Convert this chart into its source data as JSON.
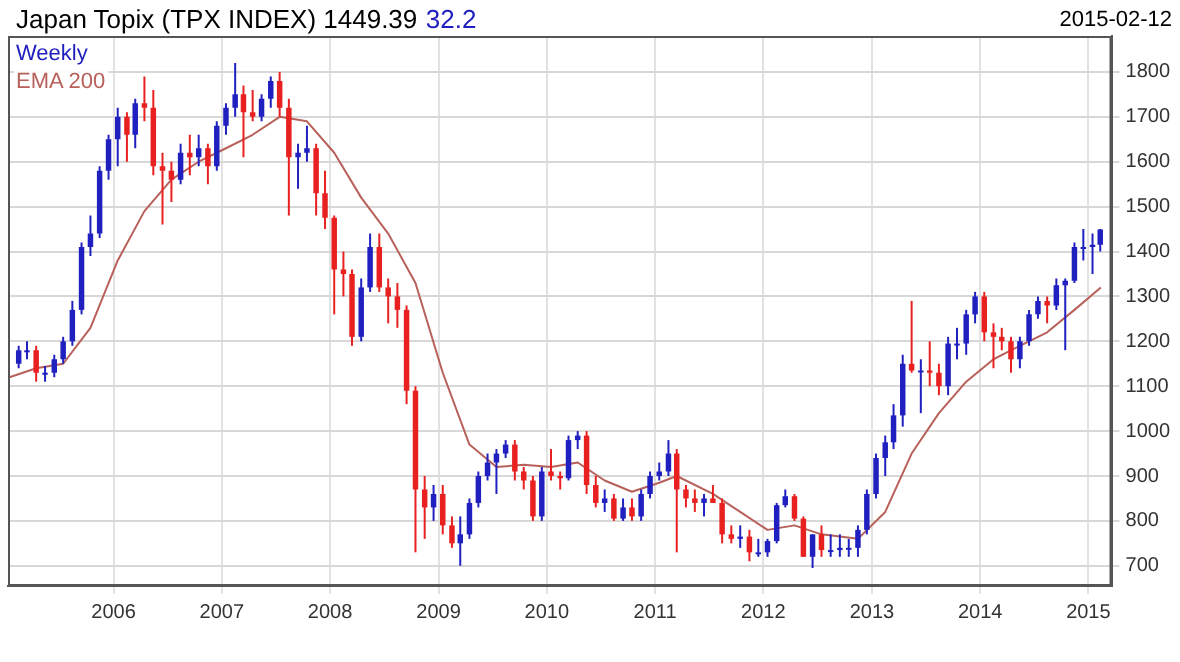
{
  "chart_data": {
    "type": "candlestick",
    "title": "Japan Topix (TPX INDEX) 1449.39",
    "subtitle": "32.2",
    "annotations": [
      "2015-02-12"
    ],
    "xlim": [
      "2005-01-10",
      "2015-03-20"
    ],
    "xticks": [
      {
        "value": "2006",
        "label": "2006"
      },
      {
        "value": "2007",
        "label": "2007"
      },
      {
        "value": "2008",
        "label": "2008"
      },
      {
        "value": "2009",
        "label": "2009"
      },
      {
        "value": "2010",
        "label": "2010"
      },
      {
        "value": "2011",
        "label": "2011"
      },
      {
        "value": "2012",
        "label": "2012"
      },
      {
        "value": "2013",
        "label": "2013"
      },
      {
        "value": "2014",
        "label": "2014"
      },
      {
        "value": "2015",
        "label": "2015"
      }
    ],
    "ylim": [
      655,
      1880
    ],
    "yticks": [
      700,
      800,
      900,
      1000,
      1100,
      1200,
      1300,
      1400,
      1500,
      1600,
      1700,
      1800
    ],
    "grid": true,
    "legend": "top left",
    "marker": "none",
    "series": [
      {
        "name": "Weekly",
        "type": "candlestick",
        "color": "#2020c0",
        "x": [
          "2005-02-15",
          "2005-03-15",
          "2005-04-15",
          "2005-05-15",
          "2005-06-15",
          "2005-07-15",
          "2005-08-15",
          "2005-09-15",
          "2005-10-15",
          "2005-11-15",
          "2005-12-15",
          "2006-01-15",
          "2006-02-15",
          "2006-03-15",
          "2006-04-15",
          "2006-05-15",
          "2006-06-15",
          "2006-07-15",
          "2006-08-15",
          "2006-09-15",
          "2006-10-15",
          "2006-11-15",
          "2006-12-15",
          "2007-01-15",
          "2007-02-15",
          "2007-03-15",
          "2007-04-15",
          "2007-05-15",
          "2007-06-15",
          "2007-07-15",
          "2007-08-15",
          "2007-09-15",
          "2007-10-15",
          "2007-11-15",
          "2007-12-15",
          "2008-01-15",
          "2008-02-15",
          "2008-03-15",
          "2008-04-15",
          "2008-05-15",
          "2008-06-15",
          "2008-07-15",
          "2008-08-15",
          "2008-09-15",
          "2008-10-15",
          "2008-11-15",
          "2008-12-15",
          "2009-01-15",
          "2009-02-15",
          "2009-03-15",
          "2009-04-15",
          "2009-05-15",
          "2009-06-15",
          "2009-07-15",
          "2009-08-15",
          "2009-09-15",
          "2009-10-15",
          "2009-11-15",
          "2009-12-15",
          "2010-01-15",
          "2010-02-15",
          "2010-03-15",
          "2010-04-15",
          "2010-05-15",
          "2010-06-15",
          "2010-07-15",
          "2010-08-15",
          "2010-09-15",
          "2010-10-15",
          "2010-11-15",
          "2010-12-15",
          "2011-01-15",
          "2011-02-15",
          "2011-03-15",
          "2011-04-15",
          "2011-05-15",
          "2011-06-15",
          "2011-07-15",
          "2011-08-15",
          "2011-09-15",
          "2011-10-15",
          "2011-11-15",
          "2011-12-15",
          "2012-01-15",
          "2012-02-15",
          "2012-03-15",
          "2012-04-15",
          "2012-05-15",
          "2012-06-15",
          "2012-07-15",
          "2012-08-15",
          "2012-09-15",
          "2012-10-15",
          "2012-11-15",
          "2012-12-15",
          "2013-01-15",
          "2013-02-15",
          "2013-03-15",
          "2013-04-15",
          "2013-05-15",
          "2013-06-15",
          "2013-07-15",
          "2013-08-15",
          "2013-09-15",
          "2013-10-15",
          "2013-11-15",
          "2013-12-15",
          "2014-01-15",
          "2014-02-15",
          "2014-03-15",
          "2014-04-15",
          "2014-05-15",
          "2014-06-15",
          "2014-07-15",
          "2014-08-15",
          "2014-09-15",
          "2014-10-15",
          "2014-11-15",
          "2014-12-15",
          "2015-01-15",
          "2015-02-10"
        ],
        "ohlc": [
          [
            1150,
            1190,
            1140,
            1180
          ],
          [
            1180,
            1200,
            1160,
            1180
          ],
          [
            1180,
            1190,
            1110,
            1130
          ],
          [
            1130,
            1145,
            1110,
            1130
          ],
          [
            1130,
            1170,
            1120,
            1160
          ],
          [
            1160,
            1210,
            1150,
            1200
          ],
          [
            1200,
            1290,
            1190,
            1270
          ],
          [
            1270,
            1420,
            1260,
            1410
          ],
          [
            1410,
            1480,
            1390,
            1440
          ],
          [
            1440,
            1590,
            1430,
            1580
          ],
          [
            1580,
            1660,
            1560,
            1650
          ],
          [
            1650,
            1720,
            1590,
            1700
          ],
          [
            1700,
            1710,
            1600,
            1660
          ],
          [
            1660,
            1740,
            1630,
            1730
          ],
          [
            1730,
            1790,
            1690,
            1720
          ],
          [
            1720,
            1760,
            1570,
            1590
          ],
          [
            1590,
            1620,
            1460,
            1580
          ],
          [
            1580,
            1600,
            1510,
            1560
          ],
          [
            1560,
            1640,
            1550,
            1620
          ],
          [
            1620,
            1660,
            1570,
            1610
          ],
          [
            1610,
            1660,
            1590,
            1630
          ],
          [
            1630,
            1640,
            1550,
            1590
          ],
          [
            1590,
            1690,
            1580,
            1680
          ],
          [
            1680,
            1730,
            1660,
            1720
          ],
          [
            1720,
            1820,
            1700,
            1750
          ],
          [
            1750,
            1770,
            1610,
            1710
          ],
          [
            1710,
            1760,
            1690,
            1700
          ],
          [
            1700,
            1750,
            1690,
            1740
          ],
          [
            1740,
            1790,
            1720,
            1780
          ],
          [
            1780,
            1800,
            1700,
            1720
          ],
          [
            1720,
            1740,
            1480,
            1610
          ],
          [
            1610,
            1640,
            1540,
            1620
          ],
          [
            1620,
            1680,
            1600,
            1630
          ],
          [
            1630,
            1640,
            1480,
            1530
          ],
          [
            1530,
            1580,
            1450,
            1475
          ],
          [
            1475,
            1480,
            1260,
            1360
          ],
          [
            1360,
            1400,
            1300,
            1350
          ],
          [
            1350,
            1360,
            1190,
            1210
          ],
          [
            1210,
            1340,
            1200,
            1320
          ],
          [
            1320,
            1440,
            1310,
            1410
          ],
          [
            1410,
            1440,
            1310,
            1320
          ],
          [
            1320,
            1340,
            1240,
            1300
          ],
          [
            1300,
            1330,
            1230,
            1270
          ],
          [
            1270,
            1280,
            1060,
            1090
          ],
          [
            1090,
            1100,
            730,
            870
          ],
          [
            870,
            900,
            760,
            830
          ],
          [
            830,
            880,
            800,
            860
          ],
          [
            860,
            880,
            770,
            790
          ],
          [
            790,
            810,
            740,
            750
          ],
          [
            750,
            810,
            700,
            770
          ],
          [
            770,
            850,
            760,
            840
          ],
          [
            840,
            910,
            830,
            900
          ],
          [
            900,
            950,
            890,
            930
          ],
          [
            930,
            960,
            860,
            950
          ],
          [
            950,
            980,
            940,
            970
          ],
          [
            970,
            980,
            890,
            910
          ],
          [
            910,
            920,
            870,
            890
          ],
          [
            890,
            900,
            800,
            810
          ],
          [
            810,
            920,
            800,
            910
          ],
          [
            910,
            960,
            890,
            900
          ],
          [
            900,
            910,
            870,
            895
          ],
          [
            895,
            990,
            890,
            980
          ],
          [
            980,
            1000,
            960,
            990
          ],
          [
            990,
            1000,
            860,
            880
          ],
          [
            880,
            900,
            830,
            840
          ],
          [
            840,
            870,
            820,
            850
          ],
          [
            850,
            860,
            800,
            805
          ],
          [
            805,
            850,
            800,
            830
          ],
          [
            830,
            850,
            800,
            810
          ],
          [
            810,
            870,
            800,
            860
          ],
          [
            860,
            910,
            850,
            900
          ],
          [
            900,
            930,
            890,
            910
          ],
          [
            910,
            980,
            900,
            950
          ],
          [
            950,
            960,
            730,
            870
          ],
          [
            870,
            880,
            830,
            850
          ],
          [
            850,
            870,
            820,
            840
          ],
          [
            840,
            860,
            810,
            850
          ],
          [
            850,
            880,
            840,
            840
          ],
          [
            840,
            850,
            750,
            770
          ],
          [
            770,
            790,
            750,
            760
          ],
          [
            760,
            790,
            740,
            765
          ],
          [
            765,
            780,
            710,
            730
          ],
          [
            730,
            760,
            720,
            730
          ],
          [
            730,
            760,
            720,
            755
          ],
          [
            755,
            840,
            750,
            835
          ],
          [
            835,
            870,
            830,
            855
          ],
          [
            855,
            860,
            800,
            805
          ],
          [
            805,
            810,
            720,
            720
          ],
          [
            720,
            770,
            695,
            770
          ],
          [
            770,
            790,
            720,
            735
          ],
          [
            735,
            770,
            720,
            735
          ],
          [
            735,
            770,
            720,
            740
          ],
          [
            740,
            760,
            720,
            740
          ],
          [
            740,
            790,
            720,
            780
          ],
          [
            780,
            870,
            770,
            860
          ],
          [
            860,
            950,
            850,
            940
          ],
          [
            940,
            990,
            900,
            975
          ],
          [
            975,
            1060,
            960,
            1035
          ],
          [
            1035,
            1170,
            1010,
            1150
          ],
          [
            1150,
            1290,
            1130,
            1135
          ],
          [
            1135,
            1160,
            1040,
            1135
          ],
          [
            1135,
            1200,
            1100,
            1130
          ],
          [
            1130,
            1150,
            1080,
            1100
          ],
          [
            1100,
            1210,
            1080,
            1195
          ],
          [
            1195,
            1230,
            1160,
            1195
          ],
          [
            1195,
            1270,
            1170,
            1260
          ],
          [
            1260,
            1310,
            1240,
            1300
          ],
          [
            1300,
            1310,
            1200,
            1220
          ],
          [
            1220,
            1240,
            1140,
            1210
          ],
          [
            1210,
            1230,
            1180,
            1200
          ],
          [
            1200,
            1210,
            1130,
            1160
          ],
          [
            1160,
            1210,
            1140,
            1200
          ],
          [
            1200,
            1270,
            1190,
            1260
          ],
          [
            1260,
            1300,
            1250,
            1290
          ],
          [
            1290,
            1300,
            1240,
            1280
          ],
          [
            1280,
            1340,
            1270,
            1325
          ],
          [
            1325,
            1340,
            1180,
            1335
          ],
          [
            1335,
            1420,
            1330,
            1410
          ],
          [
            1410,
            1450,
            1380,
            1410
          ],
          [
            1410,
            1440,
            1350,
            1415
          ],
          [
            1415,
            1450,
            1400,
            1449
          ]
        ],
        "colors": [
          "#2020c0",
          "#2020c0",
          "#e82020",
          "#2020c0",
          "#2020c0",
          "#2020c0",
          "#2020c0",
          "#2020c0",
          "#2020c0",
          "#2020c0",
          "#2020c0",
          "#2020c0",
          "#e82020",
          "#2020c0",
          "#e82020",
          "#e82020",
          "#e82020",
          "#e82020",
          "#2020c0",
          "#e82020",
          "#2020c0",
          "#e82020",
          "#2020c0",
          "#2020c0",
          "#2020c0",
          "#e82020",
          "#e82020",
          "#2020c0",
          "#2020c0",
          "#e82020",
          "#e82020",
          "#2020c0",
          "#2020c0",
          "#e82020",
          "#e82020",
          "#e82020",
          "#e82020",
          "#e82020",
          "#2020c0",
          "#2020c0",
          "#e82020",
          "#e82020",
          "#e82020",
          "#e82020",
          "#e82020",
          "#e82020",
          "#2020c0",
          "#e82020",
          "#e82020",
          "#2020c0",
          "#2020c0",
          "#2020c0",
          "#2020c0",
          "#2020c0",
          "#2020c0",
          "#e82020",
          "#e82020",
          "#e82020",
          "#2020c0",
          "#e82020",
          "#e82020",
          "#2020c0",
          "#2020c0",
          "#e82020",
          "#e82020",
          "#2020c0",
          "#e82020",
          "#2020c0",
          "#e82020",
          "#2020c0",
          "#2020c0",
          "#2020c0",
          "#2020c0",
          "#e82020",
          "#e82020",
          "#e82020",
          "#2020c0",
          "#e82020",
          "#e82020",
          "#e82020",
          "#2020c0",
          "#e82020",
          "#2020c0",
          "#2020c0",
          "#2020c0",
          "#2020c0",
          "#e82020",
          "#e82020",
          "#2020c0",
          "#e82020",
          "#2020c0",
          "#2020c0",
          "#2020c0",
          "#2020c0",
          "#2020c0",
          "#2020c0",
          "#2020c0",
          "#2020c0",
          "#2020c0",
          "#e82020",
          "#2020c0",
          "#e82020",
          "#e82020",
          "#2020c0",
          "#2020c0",
          "#2020c0",
          "#2020c0",
          "#e82020",
          "#e82020",
          "#e82020",
          "#e82020",
          "#2020c0",
          "#2020c0",
          "#2020c0",
          "#e82020",
          "#2020c0",
          "#2020c0",
          "#2020c0",
          "#2020c0",
          "#2020c0",
          "#2020c0"
        ]
      },
      {
        "name": "EMA 200",
        "type": "line",
        "color": "#b8605a",
        "x": [
          "2005-01-15",
          "2005-04-15",
          "2005-07-15",
          "2005-10-15",
          "2006-01-15",
          "2006-04-15",
          "2006-07-15",
          "2006-10-15",
          "2007-01-15",
          "2007-04-15",
          "2007-07-15",
          "2007-10-15",
          "2008-01-15",
          "2008-04-15",
          "2008-07-15",
          "2008-10-15",
          "2009-01-15",
          "2009-04-15",
          "2009-07-15",
          "2009-10-15",
          "2010-01-15",
          "2010-04-15",
          "2010-07-15",
          "2010-10-15",
          "2011-01-15",
          "2011-03-15",
          "2011-07-15",
          "2011-10-15",
          "2012-01-15",
          "2012-04-15",
          "2012-07-15",
          "2012-11-15",
          "2013-02-15",
          "2013-05-15",
          "2013-08-15",
          "2013-11-15",
          "2014-02-15",
          "2014-05-15",
          "2014-08-15",
          "2014-11-15",
          "2015-02-12"
        ],
        "values": [
          1120,
          1140,
          1150,
          1230,
          1380,
          1490,
          1560,
          1600,
          1630,
          1660,
          1700,
          1690,
          1620,
          1520,
          1440,
          1330,
          1130,
          970,
          920,
          925,
          920,
          930,
          890,
          865,
          885,
          900,
          860,
          820,
          780,
          790,
          770,
          760,
          820,
          950,
          1040,
          1110,
          1160,
          1190,
          1220,
          1270,
          1320
        ]
      }
    ]
  }
}
